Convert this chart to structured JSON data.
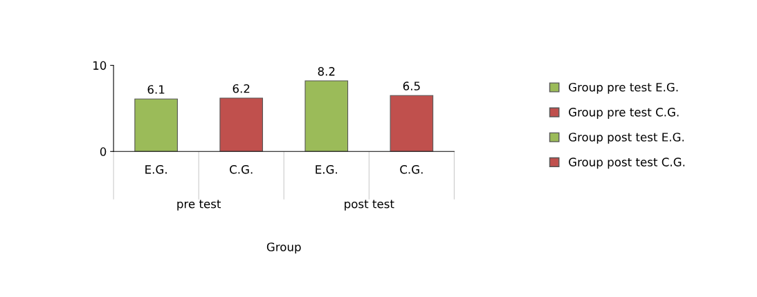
{
  "chart_data": {
    "type": "bar",
    "categories": [
      "E.G.",
      "C.G.",
      "E.G.",
      "C.G."
    ],
    "series": [
      {
        "name": "Group pre test E.G.",
        "color": "#9bbb59",
        "values": [
          6.1,
          null,
          null,
          null
        ]
      },
      {
        "name": "Group pre test C.G.",
        "color": "#c0504d",
        "values": [
          null,
          6.2,
          null,
          null
        ]
      },
      {
        "name": "Group post test E.G.",
        "color": "#9bbb59",
        "values": [
          null,
          null,
          8.2,
          null
        ]
      },
      {
        "name": "Group post test C.G.",
        "color": "#c0504d",
        "values": [
          null,
          null,
          null,
          6.5
        ]
      }
    ],
    "ylim": [
      0,
      10
    ],
    "yticks": [
      0,
      10
    ],
    "grid": false,
    "legend": "right",
    "data_labels": true,
    "annotations": [
      "pre test",
      "post test",
      "Group"
    ]
  }
}
